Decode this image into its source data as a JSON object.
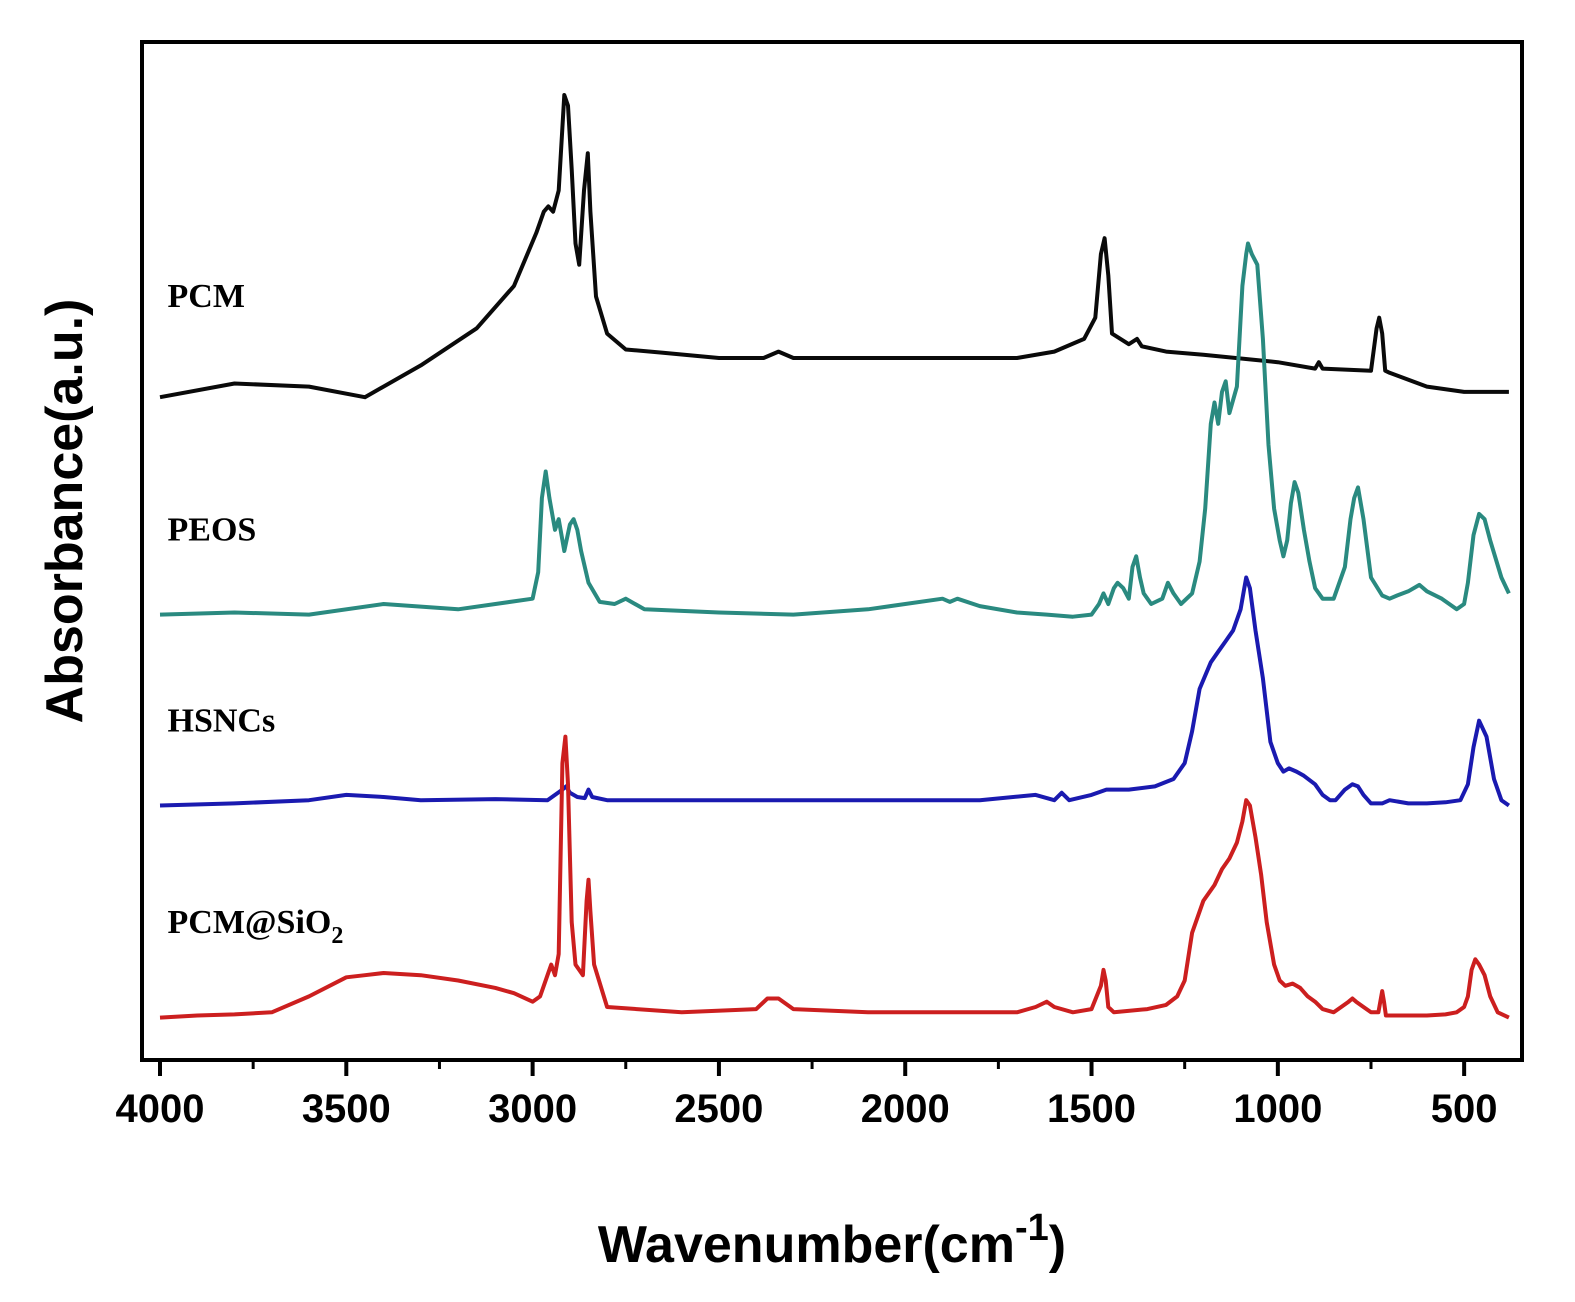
{
  "chart_data": {
    "type": "line",
    "title": "",
    "xlabel": "Wavenumber(cm",
    "xlabel_sup": "-1",
    "xlabel_close": ")",
    "ylabel": "Absorbance(a.u.)",
    "xlim": [
      4000,
      350
    ],
    "x_reversed": true,
    "ylim": [
      0,
      9.6
    ],
    "y_ticks_labeled": false,
    "grid": false,
    "x_ticks": [
      4000,
      3500,
      3000,
      2500,
      2000,
      1500,
      1000,
      500
    ],
    "x_tick_labels": [
      "4000",
      "3500",
      "3000",
      "2500",
      "2000",
      "1500",
      "1000",
      "500"
    ],
    "x_minor_ticks": [
      3750,
      3250,
      2750,
      2250,
      1750,
      1250,
      750
    ],
    "series": [
      {
        "name": "PCM",
        "label_text": "PCM",
        "color": "#0a0a0a",
        "x": [
          4000,
          3800,
          3600,
          3450,
          3300,
          3150,
          3050,
          2990,
          2970,
          2958,
          2945,
          2930,
          2915,
          2905,
          2895,
          2885,
          2875,
          2862,
          2852,
          2845,
          2830,
          2800,
          2750,
          2650,
          2500,
          2380,
          2340,
          2300,
          2000,
          1700,
          1600,
          1520,
          1490,
          1475,
          1465,
          1455,
          1445,
          1400,
          1378,
          1365,
          1300,
          1200,
          1000,
          900,
          890,
          880,
          750,
          735,
          728,
          720,
          712,
          700,
          600,
          500,
          380
        ],
        "y": [
          6.25,
          6.38,
          6.35,
          6.25,
          6.55,
          6.9,
          7.3,
          7.8,
          8.0,
          8.05,
          8.0,
          8.2,
          9.1,
          9.0,
          8.4,
          7.7,
          7.5,
          8.2,
          8.55,
          8.0,
          7.2,
          6.85,
          6.7,
          6.67,
          6.62,
          6.62,
          6.68,
          6.62,
          6.62,
          6.62,
          6.68,
          6.8,
          7.0,
          7.6,
          7.75,
          7.4,
          6.85,
          6.75,
          6.8,
          6.73,
          6.68,
          6.65,
          6.58,
          6.52,
          6.58,
          6.52,
          6.5,
          6.9,
          7.0,
          6.85,
          6.5,
          6.48,
          6.35,
          6.3,
          6.3
        ],
        "label_pos": [
          3980,
          7.1
        ]
      },
      {
        "name": "PEOS",
        "label_text": "PEOS",
        "color": "#2a8a80",
        "x": [
          4000,
          3800,
          3600,
          3400,
          3200,
          3000,
          2985,
          2975,
          2965,
          2955,
          2940,
          2930,
          2915,
          2900,
          2890,
          2880,
          2870,
          2850,
          2820,
          2780,
          2750,
          2700,
          2500,
          2300,
          2100,
          1900,
          1880,
          1860,
          1800,
          1700,
          1620,
          1550,
          1500,
          1480,
          1468,
          1455,
          1440,
          1430,
          1415,
          1400,
          1390,
          1380,
          1370,
          1360,
          1340,
          1310,
          1295,
          1280,
          1260,
          1230,
          1210,
          1195,
          1180,
          1170,
          1160,
          1150,
          1140,
          1130,
          1110,
          1095,
          1085,
          1080,
          1070,
          1055,
          1040,
          1025,
          1010,
          995,
          985,
          975,
          965,
          955,
          945,
          930,
          915,
          900,
          880,
          850,
          820,
          805,
          795,
          785,
          770,
          750,
          720,
          700,
          680,
          650,
          620,
          600,
          560,
          520,
          500,
          490,
          475,
          460,
          445,
          430,
          400,
          380
        ],
        "y": [
          4.2,
          4.22,
          4.2,
          4.3,
          4.25,
          4.35,
          4.6,
          5.3,
          5.55,
          5.3,
          5.0,
          5.1,
          4.8,
          5.05,
          5.1,
          5.0,
          4.8,
          4.5,
          4.32,
          4.3,
          4.35,
          4.25,
          4.22,
          4.2,
          4.25,
          4.35,
          4.32,
          4.35,
          4.28,
          4.22,
          4.2,
          4.18,
          4.2,
          4.3,
          4.4,
          4.3,
          4.45,
          4.5,
          4.45,
          4.35,
          4.65,
          4.75,
          4.55,
          4.4,
          4.3,
          4.35,
          4.5,
          4.4,
          4.3,
          4.4,
          4.7,
          5.2,
          6.0,
          6.2,
          6.0,
          6.3,
          6.4,
          6.1,
          6.35,
          7.3,
          7.6,
          7.7,
          7.6,
          7.5,
          6.8,
          5.8,
          5.2,
          4.9,
          4.75,
          4.9,
          5.25,
          5.45,
          5.35,
          5.0,
          4.7,
          4.45,
          4.35,
          4.35,
          4.65,
          5.1,
          5.3,
          5.4,
          5.1,
          4.55,
          4.38,
          4.35,
          4.38,
          4.42,
          4.48,
          4.42,
          4.35,
          4.25,
          4.3,
          4.5,
          4.95,
          5.15,
          5.1,
          4.9,
          4.55,
          4.4
        ],
        "label_pos": [
          3980,
          4.9
        ]
      },
      {
        "name": "HSNCs",
        "label_text": "HSNCs",
        "color": "#1a1ab0",
        "x": [
          4000,
          3800,
          3600,
          3500,
          3400,
          3300,
          3100,
          2960,
          2920,
          2910,
          2900,
          2880,
          2860,
          2850,
          2840,
          2800,
          2600,
          2400,
          2200,
          2000,
          1800,
          1650,
          1600,
          1580,
          1560,
          1500,
          1460,
          1400,
          1330,
          1280,
          1250,
          1230,
          1210,
          1180,
          1160,
          1140,
          1120,
          1100,
          1090,
          1085,
          1075,
          1060,
          1040,
          1020,
          1000,
          985,
          970,
          950,
          930,
          900,
          880,
          860,
          845,
          820,
          800,
          785,
          770,
          750,
          720,
          700,
          650,
          600,
          550,
          510,
          490,
          475,
          460,
          440,
          420,
          400,
          380
        ],
        "y": [
          2.4,
          2.42,
          2.45,
          2.5,
          2.48,
          2.45,
          2.46,
          2.45,
          2.55,
          2.58,
          2.52,
          2.48,
          2.47,
          2.55,
          2.48,
          2.45,
          2.45,
          2.45,
          2.45,
          2.45,
          2.45,
          2.5,
          2.45,
          2.52,
          2.45,
          2.5,
          2.55,
          2.55,
          2.58,
          2.65,
          2.8,
          3.1,
          3.5,
          3.75,
          3.85,
          3.95,
          4.05,
          4.25,
          4.45,
          4.55,
          4.45,
          4.05,
          3.6,
          3.0,
          2.8,
          2.72,
          2.75,
          2.72,
          2.68,
          2.6,
          2.5,
          2.45,
          2.45,
          2.55,
          2.6,
          2.58,
          2.5,
          2.42,
          2.42,
          2.45,
          2.42,
          2.42,
          2.43,
          2.45,
          2.6,
          2.95,
          3.2,
          3.05,
          2.65,
          2.45,
          2.4
        ],
        "label_pos": [
          3980,
          3.1
        ]
      },
      {
        "name": "PCM@SiO2",
        "label_text": "PCM@SiO",
        "label_sub": "2",
        "color": "#cc1f1f",
        "x": [
          4000,
          3900,
          3800,
          3700,
          3600,
          3500,
          3450,
          3400,
          3300,
          3200,
          3100,
          3050,
          3000,
          2980,
          2960,
          2950,
          2940,
          2930,
          2920,
          2912,
          2905,
          2895,
          2885,
          2875,
          2865,
          2855,
          2850,
          2845,
          2835,
          2800,
          2600,
          2400,
          2370,
          2340,
          2300,
          2100,
          1900,
          1700,
          1650,
          1620,
          1600,
          1550,
          1500,
          1475,
          1468,
          1462,
          1455,
          1440,
          1350,
          1300,
          1270,
          1250,
          1230,
          1200,
          1170,
          1150,
          1130,
          1110,
          1095,
          1085,
          1075,
          1060,
          1045,
          1030,
          1010,
          995,
          980,
          960,
          940,
          920,
          900,
          880,
          850,
          830,
          810,
          800,
          790,
          770,
          750,
          730,
          725,
          720,
          715,
          710,
          700,
          650,
          600,
          550,
          520,
          500,
          490,
          480,
          470,
          460,
          445,
          430,
          410,
          380
        ],
        "y": [
          0.4,
          0.42,
          0.43,
          0.45,
          0.6,
          0.78,
          0.8,
          0.82,
          0.8,
          0.75,
          0.68,
          0.63,
          0.55,
          0.6,
          0.8,
          0.9,
          0.8,
          1.0,
          2.8,
          3.05,
          2.6,
          1.3,
          0.9,
          0.85,
          0.8,
          1.5,
          1.7,
          1.4,
          0.9,
          0.5,
          0.45,
          0.48,
          0.58,
          0.58,
          0.48,
          0.45,
          0.45,
          0.45,
          0.5,
          0.55,
          0.5,
          0.45,
          0.48,
          0.7,
          0.85,
          0.75,
          0.5,
          0.45,
          0.48,
          0.52,
          0.6,
          0.75,
          1.2,
          1.5,
          1.65,
          1.8,
          1.9,
          2.05,
          2.25,
          2.45,
          2.4,
          2.1,
          1.75,
          1.3,
          0.9,
          0.75,
          0.7,
          0.72,
          0.68,
          0.6,
          0.55,
          0.48,
          0.45,
          0.5,
          0.55,
          0.58,
          0.55,
          0.5,
          0.45,
          0.45,
          0.55,
          0.65,
          0.55,
          0.42,
          0.42,
          0.42,
          0.42,
          0.43,
          0.45,
          0.5,
          0.6,
          0.85,
          0.95,
          0.9,
          0.8,
          0.6,
          0.45,
          0.4
        ],
        "label_pos": [
          3980,
          1.2
        ]
      }
    ]
  }
}
